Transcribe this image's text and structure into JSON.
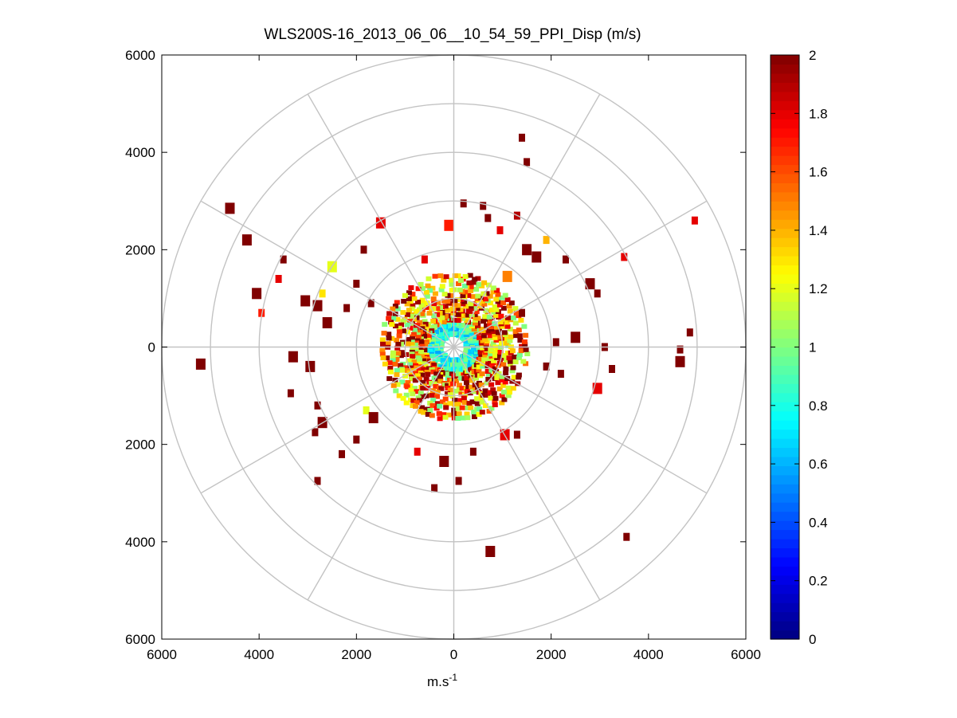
{
  "chart_data": {
    "type": "heatmap",
    "subtype": "polar-ppi",
    "title": "WLS200S-16_2013_06_06__10_54_59_PPI_Disp (m/s)",
    "xlabel": "m.s",
    "xlabel_superscript": "-1",
    "ylabel": "",
    "xlim": [
      -6000,
      6000
    ],
    "ylim": [
      -6000,
      6000
    ],
    "x_ticks": [
      -6000,
      -4000,
      -2000,
      0,
      2000,
      4000,
      6000
    ],
    "x_tick_labels": [
      "6000",
      "4000",
      "2000",
      "0",
      "2000",
      "4000",
      "6000"
    ],
    "y_ticks": [
      6000,
      4000,
      2000,
      0,
      -2000,
      -4000,
      -6000
    ],
    "y_tick_labels": [
      "6000",
      "4000",
      "2000",
      "0",
      "2000",
      "4000",
      "6000"
    ],
    "polar_grid": {
      "ring_radii": [
        1000,
        2000,
        3000,
        4000,
        5000,
        6000
      ],
      "spoke_angles_deg": [
        0,
        30,
        60,
        90,
        120,
        150,
        180,
        210,
        240,
        270,
        300,
        330
      ]
    },
    "colorbar": {
      "min": 0,
      "max": 2,
      "ticks": [
        0,
        0.2,
        0.4,
        0.6,
        0.8,
        1,
        1.2,
        1.4,
        1.6,
        1.8,
        2
      ],
      "tick_labels": [
        "0",
        "0.2",
        "0.4",
        "0.6",
        "0.8",
        "1",
        "1.2",
        "1.4",
        "1.6",
        "1.8",
        "2"
      ],
      "colormap": "jet",
      "levels": 64
    },
    "dense_region": {
      "r_min": 250,
      "r_max": 1500,
      "value_mean": 1.3,
      "near_center_value": 0.8,
      "coverage": 0.8
    },
    "series": [
      {
        "name": "scattered returns",
        "points": [
          {
            "x": 1400,
            "y": 4300,
            "v": 2.0
          },
          {
            "x": 1500,
            "y": 3800,
            "v": 2.0
          },
          {
            "x": 600,
            "y": 2900,
            "v": 2.0
          },
          {
            "x": 200,
            "y": 2950,
            "v": 2.0
          },
          {
            "x": 700,
            "y": 2650,
            "v": 2.0
          },
          {
            "x": 1300,
            "y": 2700,
            "v": 1.9
          },
          {
            "x": 1900,
            "y": 2200,
            "v": 1.4
          },
          {
            "x": 950,
            "y": 2400,
            "v": 1.8
          },
          {
            "x": 1700,
            "y": 1850,
            "v": 2.0
          },
          {
            "x": 2300,
            "y": 1800,
            "v": 2.0
          },
          {
            "x": 2800,
            "y": 1300,
            "v": 2.0
          },
          {
            "x": 2950,
            "y": 1100,
            "v": 2.0
          },
          {
            "x": 3500,
            "y": 1850,
            "v": 1.8
          },
          {
            "x": 4950,
            "y": 2600,
            "v": 1.8
          },
          {
            "x": 4850,
            "y": 300,
            "v": 2.0
          },
          {
            "x": 4650,
            "y": -50,
            "v": 2.0
          },
          {
            "x": 4650,
            "y": -300,
            "v": 2.0
          },
          {
            "x": 3250,
            "y": -450,
            "v": 2.0
          },
          {
            "x": 2950,
            "y": -850,
            "v": 1.8
          },
          {
            "x": 3550,
            "y": -3900,
            "v": 2.0
          },
          {
            "x": 750,
            "y": -4200,
            "v": 2.0
          },
          {
            "x": -400,
            "y": -2900,
            "v": 2.0
          },
          {
            "x": 100,
            "y": -2750,
            "v": 2.0
          },
          {
            "x": -750,
            "y": -2150,
            "v": 1.8
          },
          {
            "x": -2800,
            "y": -2750,
            "v": 2.0
          },
          {
            "x": -2300,
            "y": -2200,
            "v": 2.0
          },
          {
            "x": -2000,
            "y": -1900,
            "v": 2.0
          },
          {
            "x": -2700,
            "y": -1550,
            "v": 2.0
          },
          {
            "x": -3350,
            "y": -950,
            "v": 2.0
          },
          {
            "x": -2800,
            "y": -1200,
            "v": 2.0
          },
          {
            "x": -5200,
            "y": -350,
            "v": 2.0
          },
          {
            "x": -3300,
            "y": -200,
            "v": 2.0
          },
          {
            "x": -2950,
            "y": -400,
            "v": 2.0
          },
          {
            "x": -3950,
            "y": 700,
            "v": 1.7
          },
          {
            "x": -4050,
            "y": 1100,
            "v": 2.0
          },
          {
            "x": -3600,
            "y": 1400,
            "v": 1.8
          },
          {
            "x": -3050,
            "y": 950,
            "v": 2.0
          },
          {
            "x": -2700,
            "y": 1100,
            "v": 1.3
          },
          {
            "x": -2800,
            "y": 850,
            "v": 2.0
          },
          {
            "x": -2600,
            "y": 500,
            "v": 2.0
          },
          {
            "x": -2200,
            "y": 800,
            "v": 2.0
          },
          {
            "x": -2500,
            "y": 1650,
            "v": 1.2
          },
          {
            "x": -4250,
            "y": 2200,
            "v": 2.0
          },
          {
            "x": -4600,
            "y": 2850,
            "v": 2.0
          },
          {
            "x": -3500,
            "y": 1800,
            "v": 2.0
          },
          {
            "x": -1850,
            "y": 2000,
            "v": 2.0
          },
          {
            "x": -1500,
            "y": 2550,
            "v": 1.8
          },
          {
            "x": -2000,
            "y": 1300,
            "v": 2.0
          },
          {
            "x": -1700,
            "y": 900,
            "v": 2.0
          },
          {
            "x": -1800,
            "y": -1300,
            "v": 1.2
          },
          {
            "x": -1650,
            "y": -1450,
            "v": 2.0
          },
          {
            "x": -2850,
            "y": -1750,
            "v": 2.0
          },
          {
            "x": 1100,
            "y": 1450,
            "v": 1.5
          },
          {
            "x": 2500,
            "y": 200,
            "v": 2.0
          },
          {
            "x": 3100,
            "y": 0,
            "v": 2.0
          },
          {
            "x": 2100,
            "y": 100,
            "v": 2.0
          },
          {
            "x": 1900,
            "y": -400,
            "v": 2.0
          },
          {
            "x": 2200,
            "y": -550,
            "v": 2.0
          },
          {
            "x": 1300,
            "y": -1800,
            "v": 2.0
          },
          {
            "x": 1050,
            "y": -1800,
            "v": 1.8
          },
          {
            "x": 400,
            "y": -2150,
            "v": 2.0
          },
          {
            "x": -200,
            "y": -2350,
            "v": 2.0
          },
          {
            "x": 1500,
            "y": 2000,
            "v": 2.0
          },
          {
            "x": -600,
            "y": 1800,
            "v": 1.8
          },
          {
            "x": 1400,
            "y": 700,
            "v": 2.0
          },
          {
            "x": -100,
            "y": 2500,
            "v": 1.7
          }
        ]
      }
    ]
  }
}
